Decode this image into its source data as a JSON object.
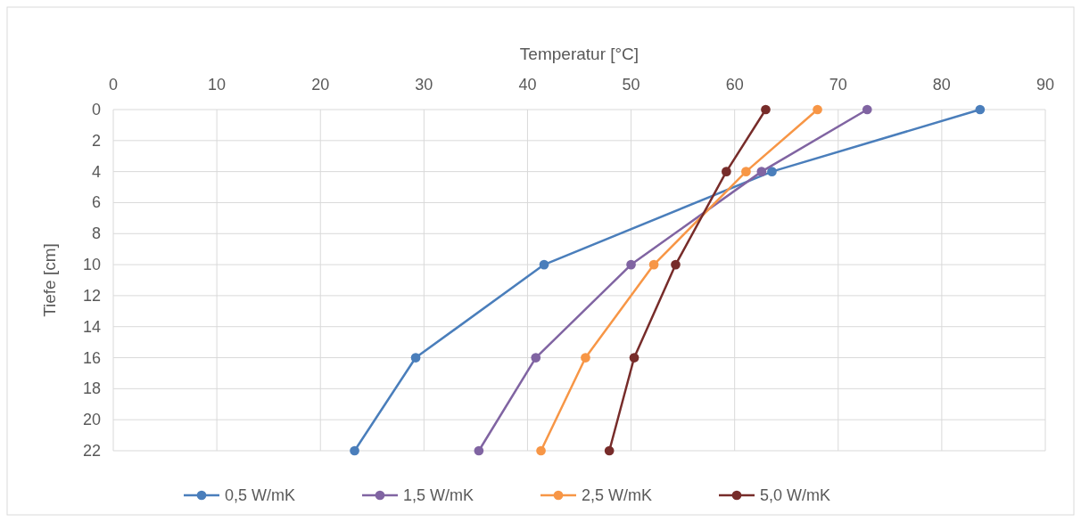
{
  "chart_data": {
    "type": "line",
    "xlabel": "Temperatur [°C]",
    "ylabel": "Tiefe [cm]",
    "xlim": [
      0,
      90
    ],
    "xticks": [
      0,
      10,
      20,
      30,
      40,
      50,
      60,
      70,
      80,
      90
    ],
    "ylim": [
      22,
      0
    ],
    "yticks": [
      0,
      2,
      4,
      6,
      8,
      10,
      12,
      14,
      16,
      18,
      20,
      22
    ],
    "grid": true,
    "legend": "bottom",
    "marker": "circle",
    "line_style": "solid",
    "series": [
      {
        "name": "0,5 W/mK",
        "color": "#4a7ebb",
        "x": [
          83.7,
          63.6,
          41.6,
          29.2,
          23.3
        ],
        "values": [
          0,
          4,
          10,
          16,
          22
        ]
      },
      {
        "name": "1,5 W/mK",
        "color": "#8064a2",
        "x": [
          72.8,
          62.6,
          50.0,
          40.8,
          35.3
        ],
        "values": [
          0,
          4,
          10,
          16,
          22
        ]
      },
      {
        "name": "2,5 W/mK",
        "color": "#f79646",
        "x": [
          68.0,
          61.1,
          52.2,
          45.6,
          41.3
        ],
        "values": [
          0,
          4,
          10,
          16,
          22
        ]
      },
      {
        "name": "5,0 W/mK",
        "color": "#772c2a",
        "x": [
          63.0,
          59.2,
          54.3,
          50.3,
          47.9
        ],
        "values": [
          0,
          4,
          10,
          16,
          22
        ]
      }
    ]
  }
}
